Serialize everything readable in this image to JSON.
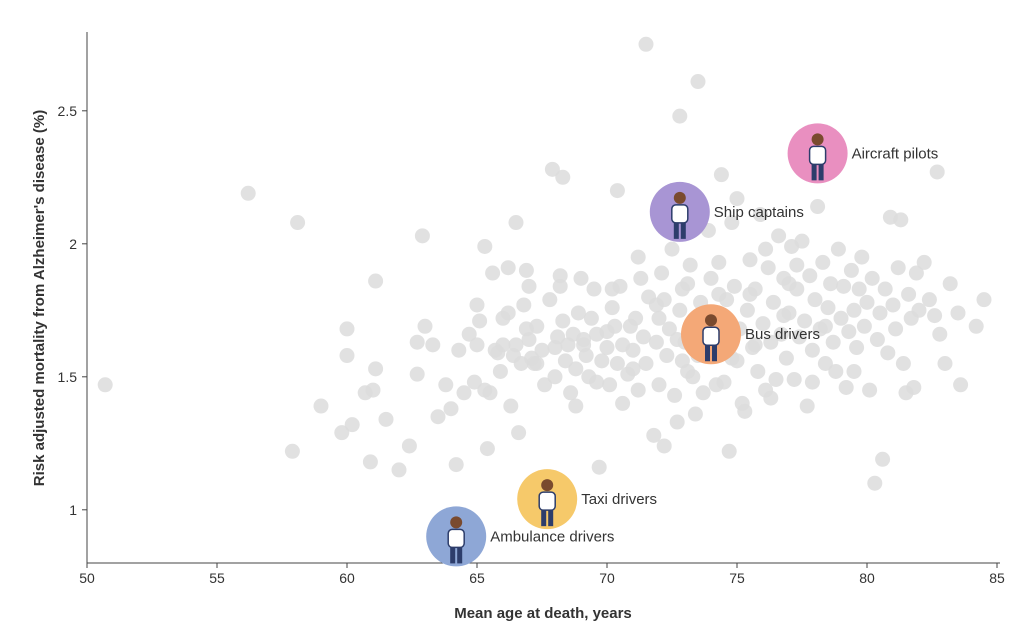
{
  "chart_data": {
    "type": "scatter",
    "title": "",
    "xlabel": "Mean age at death, years",
    "ylabel": "Risk adjusted mortality from Alzheimer's disease (%)",
    "xlim": [
      50,
      85
    ],
    "ylim": [
      0.8,
      2.8
    ],
    "xticks": [
      50,
      55,
      60,
      65,
      70,
      75,
      80,
      85
    ],
    "yticks": [
      1,
      1.5,
      2,
      2.5
    ],
    "ytick_labels": [
      "1",
      "1.5",
      "2",
      "2.5"
    ],
    "grid": false,
    "point_color": "#dcdcdc",
    "highlighted": [
      {
        "label": "Aircraft pilots",
        "x": 78.1,
        "y": 2.34,
        "color": "#e98fc0",
        "icon": "pilot-icon"
      },
      {
        "label": "Ship captains",
        "x": 72.8,
        "y": 2.12,
        "color": "#a895d4",
        "icon": "ship-captain-icon"
      },
      {
        "label": "Bus drivers",
        "x": 74.0,
        "y": 1.66,
        "color": "#f4a877",
        "icon": "bus-driver-icon"
      },
      {
        "label": "Taxi drivers",
        "x": 67.7,
        "y": 1.04,
        "color": "#f6c96a",
        "icon": "taxi-driver-icon"
      },
      {
        "label": "Ambulance drivers",
        "x": 64.2,
        "y": 0.9,
        "color": "#8ea7d6",
        "icon": "ambulance-driver-icon"
      }
    ],
    "points": [
      [
        50.7,
        1.47
      ],
      [
        56.2,
        2.19
      ],
      [
        58.1,
        2.08
      ],
      [
        57.9,
        1.22
      ],
      [
        59.0,
        1.39
      ],
      [
        59.8,
        1.29
      ],
      [
        60.0,
        1.68
      ],
      [
        60.0,
        1.58
      ],
      [
        60.2,
        1.32
      ],
      [
        60.7,
        1.44
      ],
      [
        60.9,
        1.18
      ],
      [
        61.0,
        1.45
      ],
      [
        61.1,
        1.53
      ],
      [
        61.1,
        1.86
      ],
      [
        61.5,
        1.34
      ],
      [
        62.0,
        1.15
      ],
      [
        62.4,
        1.24
      ],
      [
        62.7,
        1.51
      ],
      [
        62.7,
        1.63
      ],
      [
        63.0,
        1.69
      ],
      [
        62.9,
        2.03
      ],
      [
        63.3,
        1.62
      ],
      [
        63.5,
        1.35
      ],
      [
        63.8,
        1.47
      ],
      [
        64.0,
        1.38
      ],
      [
        64.2,
        1.17
      ],
      [
        64.3,
        1.6
      ],
      [
        64.5,
        1.44
      ],
      [
        64.7,
        1.66
      ],
      [
        65.0,
        1.62
      ],
      [
        65.0,
        1.77
      ],
      [
        65.1,
        1.71
      ],
      [
        65.3,
        1.99
      ],
      [
        65.3,
        1.45
      ],
      [
        65.4,
        1.23
      ],
      [
        65.5,
        1.44
      ],
      [
        65.6,
        1.89
      ],
      [
        65.8,
        1.59
      ],
      [
        65.9,
        1.52
      ],
      [
        66.0,
        1.62
      ],
      [
        66.0,
        1.72
      ],
      [
        66.2,
        1.91
      ],
      [
        66.3,
        1.39
      ],
      [
        66.4,
        1.58
      ],
      [
        66.5,
        1.62
      ],
      [
        66.5,
        2.08
      ],
      [
        66.6,
        1.29
      ],
      [
        66.7,
        1.55
      ],
      [
        66.8,
        1.77
      ],
      [
        66.9,
        1.9
      ],
      [
        67.0,
        1.64
      ],
      [
        67.0,
        1.84
      ],
      [
        67.1,
        1.57
      ],
      [
        67.2,
        1.55
      ],
      [
        67.3,
        1.69
      ],
      [
        67.5,
        1.6
      ],
      [
        67.6,
        1.47
      ],
      [
        67.8,
        1.79
      ],
      [
        67.9,
        2.28
      ],
      [
        68.0,
        1.61
      ],
      [
        68.0,
        1.5
      ],
      [
        68.1,
        1.65
      ],
      [
        68.2,
        1.84
      ],
      [
        68.3,
        2.25
      ],
      [
        68.3,
        1.71
      ],
      [
        68.4,
        1.56
      ],
      [
        68.5,
        1.62
      ],
      [
        68.6,
        1.44
      ],
      [
        68.7,
        1.66
      ],
      [
        68.8,
        1.53
      ],
      [
        68.9,
        1.74
      ],
      [
        69.0,
        1.87
      ],
      [
        69.1,
        1.64
      ],
      [
        69.2,
        1.58
      ],
      [
        69.3,
        1.5
      ],
      [
        69.4,
        1.72
      ],
      [
        69.5,
        1.83
      ],
      [
        69.6,
        1.66
      ],
      [
        69.7,
        1.16
      ],
      [
        69.8,
        1.56
      ],
      [
        70.0,
        1.61
      ],
      [
        70.1,
        1.47
      ],
      [
        70.2,
        1.76
      ],
      [
        70.3,
        1.69
      ],
      [
        70.4,
        1.55
      ],
      [
        70.4,
        2.2
      ],
      [
        70.5,
        1.84
      ],
      [
        70.6,
        1.62
      ],
      [
        70.8,
        1.51
      ],
      [
        70.9,
        1.69
      ],
      [
        71.0,
        1.6
      ],
      [
        71.1,
        1.72
      ],
      [
        71.2,
        1.45
      ],
      [
        71.3,
        1.87
      ],
      [
        71.4,
        1.65
      ],
      [
        71.5,
        2.75
      ],
      [
        71.5,
        1.55
      ],
      [
        71.6,
        1.8
      ],
      [
        71.8,
        1.28
      ],
      [
        71.9,
        1.63
      ],
      [
        72.0,
        1.47
      ],
      [
        72.0,
        1.72
      ],
      [
        72.1,
        1.89
      ],
      [
        72.2,
        1.24
      ],
      [
        72.3,
        1.58
      ],
      [
        72.4,
        1.68
      ],
      [
        72.5,
        1.98
      ],
      [
        72.6,
        1.43
      ],
      [
        72.7,
        1.33
      ],
      [
        72.8,
        2.48
      ],
      [
        72.8,
        1.75
      ],
      [
        72.9,
        1.56
      ],
      [
        73.0,
        1.63
      ],
      [
        73.1,
        1.85
      ],
      [
        73.2,
        1.92
      ],
      [
        73.3,
        1.5
      ],
      [
        73.4,
        1.66
      ],
      [
        73.5,
        2.61
      ],
      [
        73.6,
        1.78
      ],
      [
        73.7,
        1.44
      ],
      [
        73.8,
        1.59
      ],
      [
        73.9,
        2.05
      ],
      [
        74.0,
        1.87
      ],
      [
        74.1,
        1.69
      ],
      [
        74.2,
        1.47
      ],
      [
        74.3,
        1.93
      ],
      [
        74.4,
        2.26
      ],
      [
        74.5,
        1.62
      ],
      [
        74.6,
        1.79
      ],
      [
        74.7,
        1.22
      ],
      [
        74.8,
        1.57
      ],
      [
        74.9,
        1.84
      ],
      [
        75.0,
        2.17
      ],
      [
        75.1,
        1.68
      ],
      [
        75.2,
        1.4
      ],
      [
        75.3,
        1.37
      ],
      [
        75.4,
        1.75
      ],
      [
        75.5,
        1.94
      ],
      [
        75.6,
        1.61
      ],
      [
        75.7,
        1.83
      ],
      [
        75.8,
        1.52
      ],
      [
        75.9,
        2.11
      ],
      [
        76.0,
        1.7
      ],
      [
        76.1,
        1.45
      ],
      [
        76.2,
        1.91
      ],
      [
        76.3,
        1.63
      ],
      [
        76.4,
        1.78
      ],
      [
        76.5,
        1.49
      ],
      [
        76.6,
        2.03
      ],
      [
        76.7,
        1.66
      ],
      [
        76.8,
        1.87
      ],
      [
        76.9,
        1.57
      ],
      [
        77.0,
        1.74
      ],
      [
        77.1,
        1.99
      ],
      [
        77.2,
        1.49
      ],
      [
        77.3,
        1.83
      ],
      [
        77.4,
        1.65
      ],
      [
        77.5,
        2.01
      ],
      [
        77.6,
        1.71
      ],
      [
        77.7,
        1.39
      ],
      [
        77.8,
        1.88
      ],
      [
        77.9,
        1.6
      ],
      [
        78.0,
        1.79
      ],
      [
        78.1,
        2.14
      ],
      [
        78.2,
        1.68
      ],
      [
        78.3,
        1.93
      ],
      [
        78.4,
        1.55
      ],
      [
        78.5,
        1.76
      ],
      [
        78.6,
        1.85
      ],
      [
        78.7,
        1.63
      ],
      [
        78.8,
        1.52
      ],
      [
        78.9,
        1.98
      ],
      [
        79.0,
        1.72
      ],
      [
        79.1,
        1.84
      ],
      [
        79.2,
        1.46
      ],
      [
        79.3,
        1.67
      ],
      [
        79.4,
        1.9
      ],
      [
        79.5,
        1.75
      ],
      [
        79.6,
        1.61
      ],
      [
        79.7,
        1.83
      ],
      [
        79.8,
        1.95
      ],
      [
        79.9,
        1.69
      ],
      [
        80.0,
        1.78
      ],
      [
        80.1,
        1.45
      ],
      [
        80.2,
        1.87
      ],
      [
        80.3,
        1.1
      ],
      [
        80.4,
        1.64
      ],
      [
        80.5,
        1.74
      ],
      [
        80.6,
        1.19
      ],
      [
        80.7,
        1.83
      ],
      [
        80.8,
        1.59
      ],
      [
        80.9,
        2.1
      ],
      [
        81.0,
        1.77
      ],
      [
        81.1,
        1.68
      ],
      [
        81.2,
        1.91
      ],
      [
        81.3,
        2.09
      ],
      [
        81.4,
        1.55
      ],
      [
        81.5,
        1.44
      ],
      [
        81.6,
        1.81
      ],
      [
        81.7,
        1.72
      ],
      [
        81.8,
        1.46
      ],
      [
        81.9,
        1.89
      ],
      [
        82.0,
        1.75
      ],
      [
        82.2,
        1.93
      ],
      [
        82.4,
        1.79
      ],
      [
        82.6,
        1.73
      ],
      [
        82.7,
        2.27
      ],
      [
        82.8,
        1.66
      ],
      [
        83.0,
        1.55
      ],
      [
        83.2,
        1.85
      ],
      [
        83.5,
        1.74
      ],
      [
        83.6,
        1.47
      ],
      [
        84.2,
        1.69
      ],
      [
        84.5,
        1.79
      ],
      [
        70.2,
        1.83
      ],
      [
        69.6,
        1.48
      ],
      [
        73.4,
        1.36
      ],
      [
        74.5,
        1.48
      ],
      [
        76.3,
        1.42
      ],
      [
        77.9,
        1.48
      ],
      [
        71.9,
        1.77
      ],
      [
        72.9,
        1.83
      ],
      [
        75.5,
        1.81
      ],
      [
        76.8,
        1.73
      ],
      [
        68.8,
        1.39
      ],
      [
        67.3,
        1.55
      ],
      [
        66.2,
        1.74
      ],
      [
        64.9,
        1.48
      ],
      [
        70.6,
        1.4
      ],
      [
        73.5,
        1.58
      ],
      [
        75.7,
        1.62
      ],
      [
        74.8,
        2.08
      ],
      [
        76.1,
        1.98
      ],
      [
        77.3,
        1.92
      ],
      [
        71.2,
        1.95
      ],
      [
        69.1,
        1.62
      ],
      [
        68.2,
        1.88
      ],
      [
        65.7,
        1.6
      ],
      [
        78.4,
        1.69
      ],
      [
        79.5,
        1.52
      ],
      [
        72.7,
        1.64
      ],
      [
        73.9,
        1.72
      ],
      [
        70.0,
        1.67
      ],
      [
        66.9,
        1.68
      ],
      [
        75.0,
        1.56
      ],
      [
        77.0,
        1.85
      ],
      [
        74.3,
        1.81
      ],
      [
        71.0,
        1.53
      ],
      [
        72.2,
        1.79
      ],
      [
        73.1,
        1.52
      ]
    ]
  }
}
